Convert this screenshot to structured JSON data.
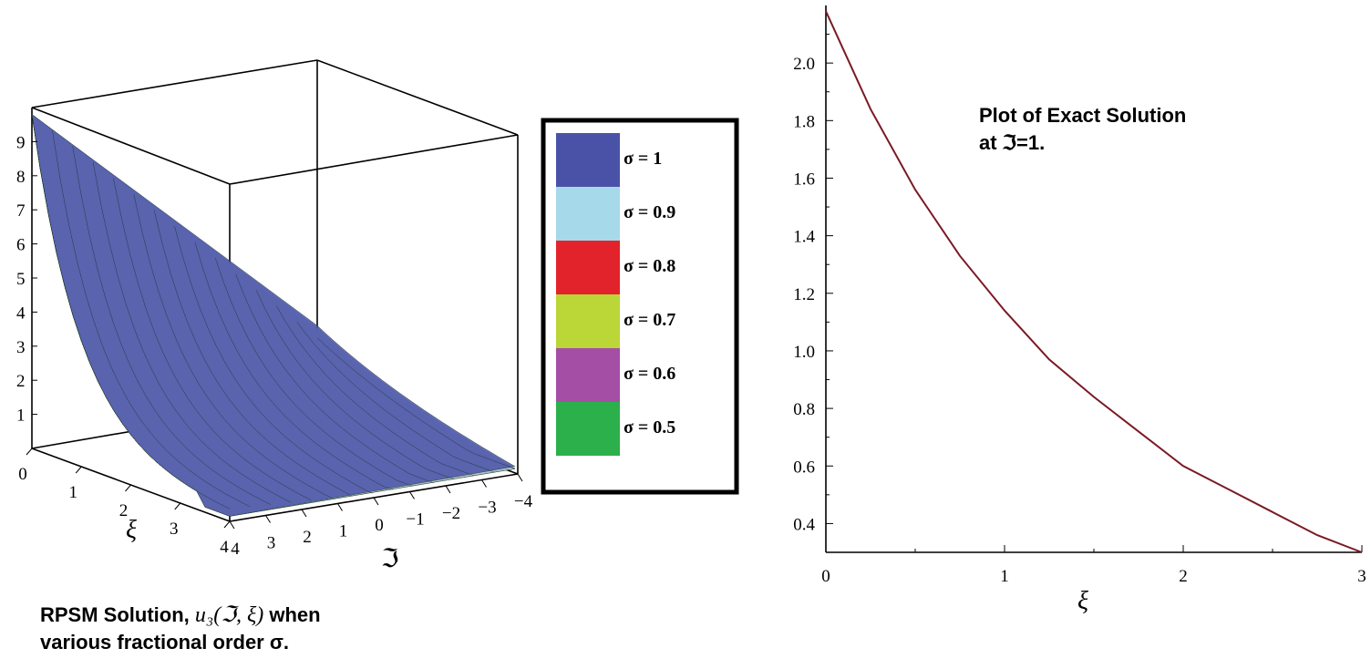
{
  "left_caption": {
    "line1_prefix": "RPSM Solution,",
    "line1_math": "u₃(ℑ, ξ)",
    "line1_suffix": "when",
    "line2": "various fractional order σ."
  },
  "right_caption": {
    "line1": "Plot of Exact Solution",
    "line2": "at ℑ=1."
  },
  "legend": {
    "items": [
      {
        "label": "σ = 1",
        "color": "#4a52a8"
      },
      {
        "label": "σ = 0.9",
        "color": "#a6d9ea"
      },
      {
        "label": "σ = 0.8",
        "color": "#e3232b"
      },
      {
        "label": "σ = 0.7",
        "color": "#bad637"
      },
      {
        "label": "σ = 0.6",
        "color": "#a44ea6"
      },
      {
        "label": "σ = 0.5",
        "color": "#2bb04c"
      }
    ]
  },
  "chart_data": [
    {
      "type": "surface",
      "title": "",
      "xlabel": "ξ",
      "ylabel": "ℑ",
      "zlabel": "",
      "x_ticks": [
        "0",
        "1",
        "2",
        "3",
        "4"
      ],
      "y_ticks": [
        "4",
        "3",
        "2",
        "1",
        "0",
        "−1",
        "−2",
        "−3",
        "−4"
      ],
      "z_ticks": [
        "1",
        "2",
        "3",
        "4",
        "5",
        "6",
        "7",
        "8",
        "9"
      ],
      "xlim": [
        0,
        3
      ],
      "ylim": [
        -4,
        4
      ],
      "zlim": [
        0,
        10
      ],
      "series": [
        {
          "name": "σ = 1",
          "color": "#4a52a8"
        },
        {
          "name": "σ = 0.9",
          "color": "#a6d9ea"
        },
        {
          "name": "σ = 0.8",
          "color": "#e3232b"
        },
        {
          "name": "σ = 0.7",
          "color": "#bad637"
        },
        {
          "name": "σ = 0.6",
          "color": "#a44ea6"
        },
        {
          "name": "σ = 0.5",
          "color": "#2bb04c"
        }
      ]
    },
    {
      "type": "line",
      "title": "",
      "xlabel": "ξ",
      "ylabel": "",
      "xlim": [
        0,
        3
      ],
      "ylim": [
        0.3,
        2.2
      ],
      "x_ticks": [
        0,
        1,
        2,
        3
      ],
      "y_ticks": [
        0.4,
        0.6,
        0.8,
        1.0,
        1.2,
        1.4,
        1.6,
        1.8,
        2.0
      ],
      "series": [
        {
          "color": "#7a1a24",
          "x": [
            0,
            0.25,
            0.5,
            0.75,
            1.0,
            1.25,
            1.5,
            1.75,
            2.0,
            2.25,
            2.5,
            2.75,
            3.0
          ],
          "y": [
            2.18,
            1.84,
            1.56,
            1.33,
            1.14,
            0.97,
            0.84,
            0.72,
            0.6,
            0.52,
            0.44,
            0.36,
            0.3
          ]
        }
      ]
    }
  ]
}
